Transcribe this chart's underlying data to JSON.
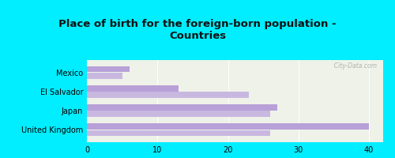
{
  "title": "Place of birth for the foreign-born population -\nCountries",
  "categories": [
    "Mexico",
    "El Salvador",
    "Japan",
    "United Kingdom"
  ],
  "series1": [
    40,
    27,
    13,
    6
  ],
  "series2": [
    26,
    26,
    23,
    5
  ],
  "bar_color1": "#b8a0d8",
  "bar_color2": "#c8b8e0",
  "background_cyan": "#00eeff",
  "background_chart": "#eef2e8",
  "xlim": [
    0,
    42
  ],
  "xticks": [
    0,
    10,
    20,
    30,
    40
  ],
  "bar_height": 0.32,
  "watermark": "  City-Data.com"
}
